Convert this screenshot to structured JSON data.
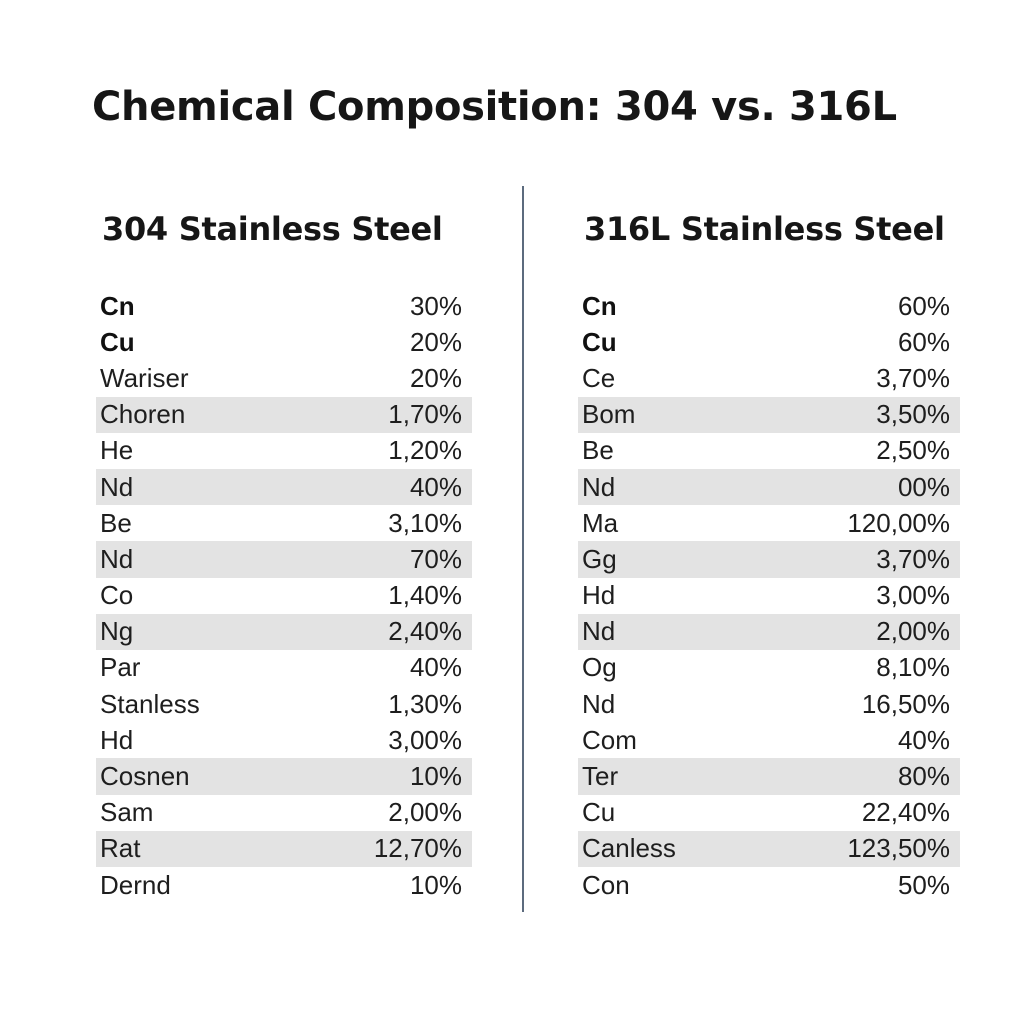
{
  "title": "Chemical Composition: 304 vs. 316L",
  "left": {
    "heading": "304 Stainless Steel",
    "rows": [
      {
        "name": "Cn",
        "value": "30%"
      },
      {
        "name": "Cu",
        "value": "20%"
      },
      {
        "name": "Wariser",
        "value": "20%"
      },
      {
        "name": "Choren",
        "value": "1,70%"
      },
      {
        "name": "He",
        "value": "1,20%"
      },
      {
        "name": "Nd",
        "value": "40%"
      },
      {
        "name": "Be",
        "value": "3,10%"
      },
      {
        "name": "Nd",
        "value": "70%"
      },
      {
        "name": "Co",
        "value": "1,40%"
      },
      {
        "name": "Ng",
        "value": "2,40%"
      },
      {
        "name": "Par",
        "value": "40%"
      },
      {
        "name": "Stanless",
        "value": "1,30%"
      },
      {
        "name": "Hd",
        "value": "3,00%"
      },
      {
        "name": "Cosnen",
        "value": "10%"
      },
      {
        "name": "Sam",
        "value": "2,00%"
      },
      {
        "name": "Rat",
        "value": "12,70%"
      },
      {
        "name": "Dernd",
        "value": "10%"
      }
    ]
  },
  "right": {
    "heading": "316L Stainless Steel",
    "rows": [
      {
        "name": "Cn",
        "value": "60%"
      },
      {
        "name": "Cu",
        "value": "60%"
      },
      {
        "name": "Ce",
        "value": "3,70%"
      },
      {
        "name": "Bom",
        "value": "3,50%"
      },
      {
        "name": "Be",
        "value": "2,50%"
      },
      {
        "name": "Nd",
        "value": "00%"
      },
      {
        "name": "Ma",
        "value": "120,00%"
      },
      {
        "name": "Gg",
        "value": "3,70%"
      },
      {
        "name": "Hd",
        "value": "3,00%"
      },
      {
        "name": "Nd",
        "value": "2,00%"
      },
      {
        "name": "Og",
        "value": "8,10%"
      },
      {
        "name": "Nd",
        "value": "16,50%"
      },
      {
        "name": "Com",
        "value": "40%"
      },
      {
        "name": "Ter",
        "value": "80%"
      },
      {
        "name": "Cu",
        "value": "22,40%"
      },
      {
        "name": "Canless",
        "value": "123,50%"
      },
      {
        "name": "Con",
        "value": "50%"
      }
    ]
  }
}
